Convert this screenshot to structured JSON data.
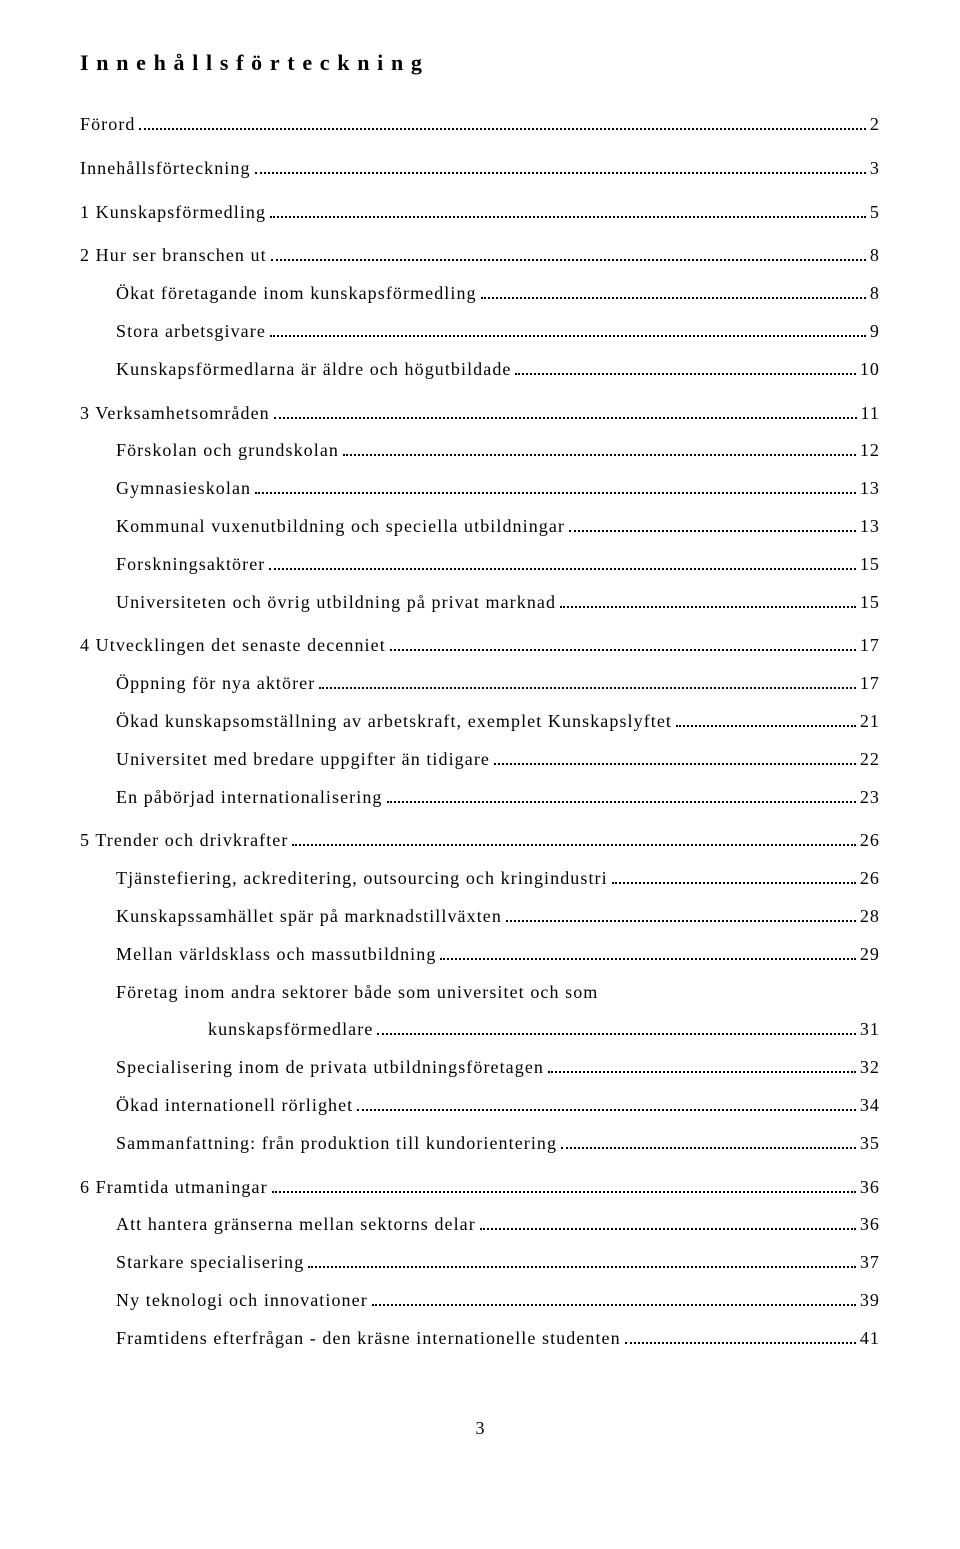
{
  "title": "Innehållsförteckning",
  "footer_page": "3",
  "entries": [
    {
      "level": 1,
      "label": "Förord",
      "page": "2",
      "gap": false
    },
    {
      "level": 1,
      "label": "Innehållsförteckning",
      "page": "3",
      "gap": true
    },
    {
      "level": 1,
      "label": "1 Kunskapsförmedling",
      "page": "5",
      "gap": true
    },
    {
      "level": 1,
      "label": "2 Hur ser branschen ut",
      "page": "8",
      "gap": true
    },
    {
      "level": 2,
      "label": "Ökat företagande inom kunskapsförmedling",
      "page": "8"
    },
    {
      "level": 2,
      "label": "Stora arbetsgivare",
      "page": "9"
    },
    {
      "level": 2,
      "label": "Kunskapsförmedlarna är äldre och högutbildade",
      "page": "10"
    },
    {
      "level": 1,
      "label": "3 Verksamhetsområden",
      "page": "11",
      "gap": true
    },
    {
      "level": 2,
      "label": "Förskolan och grundskolan",
      "page": "12"
    },
    {
      "level": 2,
      "label": "Gymnasieskolan",
      "page": "13"
    },
    {
      "level": 2,
      "label": "Kommunal vuxenutbildning och speciella utbildningar",
      "page": "13"
    },
    {
      "level": 2,
      "label": "Forskningsaktörer",
      "page": "15"
    },
    {
      "level": 2,
      "label": "Universiteten och övrig utbildning på privat marknad",
      "page": "15"
    },
    {
      "level": 1,
      "label": "4 Utvecklingen det senaste decenniet",
      "page": "17",
      "gap": true
    },
    {
      "level": 2,
      "label": "Öppning för nya aktörer",
      "page": "17"
    },
    {
      "level": 2,
      "label": "Ökad kunskapsomställning av arbetskraft, exemplet Kunskapslyftet",
      "page": "21"
    },
    {
      "level": 2,
      "label": "Universitet med bredare uppgifter än tidigare",
      "page": "22"
    },
    {
      "level": 2,
      "label": "En påbörjad internationalisering",
      "page": "23"
    },
    {
      "level": 1,
      "label": "5 Trender och drivkrafter",
      "page": "26",
      "gap": true
    },
    {
      "level": 2,
      "label": "Tjänstefiering, ackreditering, outsourcing och kringindustri",
      "page": "26"
    },
    {
      "level": 2,
      "label": "Kunskapssamhället spär på marknadstillväxten",
      "page": "28"
    },
    {
      "level": 2,
      "label": "Mellan världsklass och massutbildning",
      "page": "29"
    },
    {
      "level": 2,
      "label": "Företag inom andra sektorer både som universitet och som",
      "continuation": "kunskapsförmedlare",
      "page": "31"
    },
    {
      "level": 2,
      "label": "Specialisering inom de privata utbildningsföretagen",
      "page": "32"
    },
    {
      "level": 2,
      "label": "Ökad internationell rörlighet",
      "page": "34"
    },
    {
      "level": 2,
      "label": "Sammanfattning: från produktion till kundorientering",
      "page": "35"
    },
    {
      "level": 1,
      "label": "6 Framtida utmaningar",
      "page": "36",
      "gap": true
    },
    {
      "level": 2,
      "label": "Att hantera gränserna mellan sektorns delar",
      "page": "36"
    },
    {
      "level": 2,
      "label": "Starkare specialisering",
      "page": "37"
    },
    {
      "level": 2,
      "label": "Ny teknologi och innovationer",
      "page": "39"
    },
    {
      "level": 2,
      "label": "Framtidens efterfrågan - den kräsne internationelle studenten",
      "page": "41"
    }
  ]
}
